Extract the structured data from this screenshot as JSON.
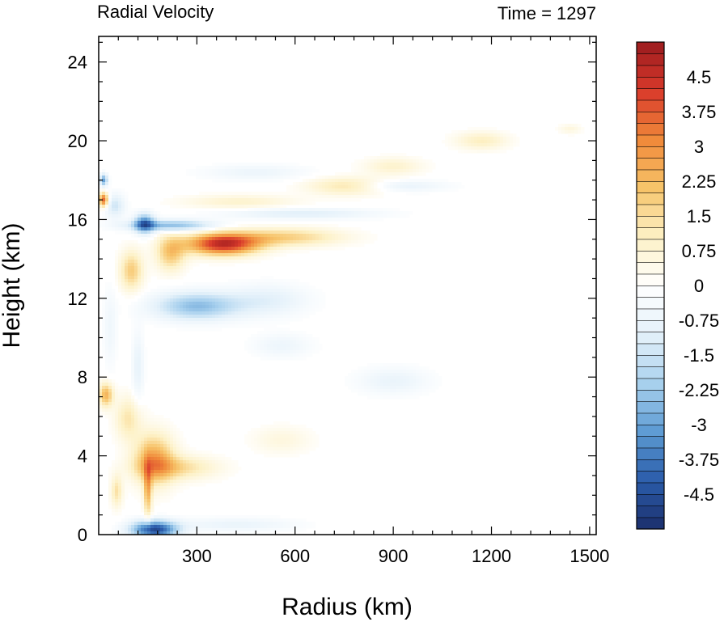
{
  "chart_data": {
    "type": "heatmap",
    "title_left": "Radial Velocity",
    "title_right": "Time = 1297",
    "xlabel": "Radius (km)",
    "ylabel": "Height (km)",
    "xlim": [
      0,
      1520
    ],
    "ylim": [
      0,
      25.3
    ],
    "x_ticks": [
      300,
      600,
      900,
      1200,
      1500
    ],
    "y_ticks": [
      0,
      4,
      8,
      12,
      16,
      20,
      24
    ],
    "colorbar": {
      "min": -5.25,
      "max": 5.25,
      "step": 0.25,
      "labels": [
        4.5,
        3.75,
        3,
        2.25,
        1.5,
        0.75,
        0,
        -0.75,
        -1.5,
        -2.25,
        -3,
        -3.75,
        -4.5
      ],
      "label_text": [
        "4.5",
        "3.75",
        "3",
        "2.25",
        "1.5",
        "0.75",
        "0",
        "-0.75",
        "-1.5",
        "-2.25",
        "-3",
        "-3.75",
        "-4.5"
      ],
      "colormap": "BlueWhiteOrangeRed",
      "colors": [
        "#1b2f6b",
        "#2b5cab",
        "#5d9bd3",
        "#a9d1ee",
        "#e4f1fa",
        "#ffffff",
        "#fdf1c6",
        "#f7c46a",
        "#f08a3a",
        "#d93a2b",
        "#9b1b1e"
      ]
    },
    "features": [
      {
        "name": "outflow-max",
        "x_km": 380,
        "z_km": 14.8,
        "value": 4.5
      },
      {
        "name": "outflow-tail",
        "x_km": 650,
        "z_km": 15.2,
        "value": 2.0
      },
      {
        "name": "inflow-upper",
        "x_km": 130,
        "z_km": 15.8,
        "value": -3.5
      },
      {
        "name": "inflow-mid",
        "x_km": 300,
        "z_km": 11.5,
        "value": -2.5
      },
      {
        "name": "inflow-low",
        "x_km": 150,
        "z_km": 0.3,
        "value": -4.5
      },
      {
        "name": "low-outflow",
        "x_km": 200,
        "z_km": 4.0,
        "value": 2.5
      },
      {
        "name": "upper-bands",
        "x_km": 700,
        "z_km": 18.0,
        "value": 1.5
      },
      {
        "name": "far-band",
        "x_km": 1170,
        "z_km": 20.0,
        "value": 1.0
      }
    ]
  }
}
